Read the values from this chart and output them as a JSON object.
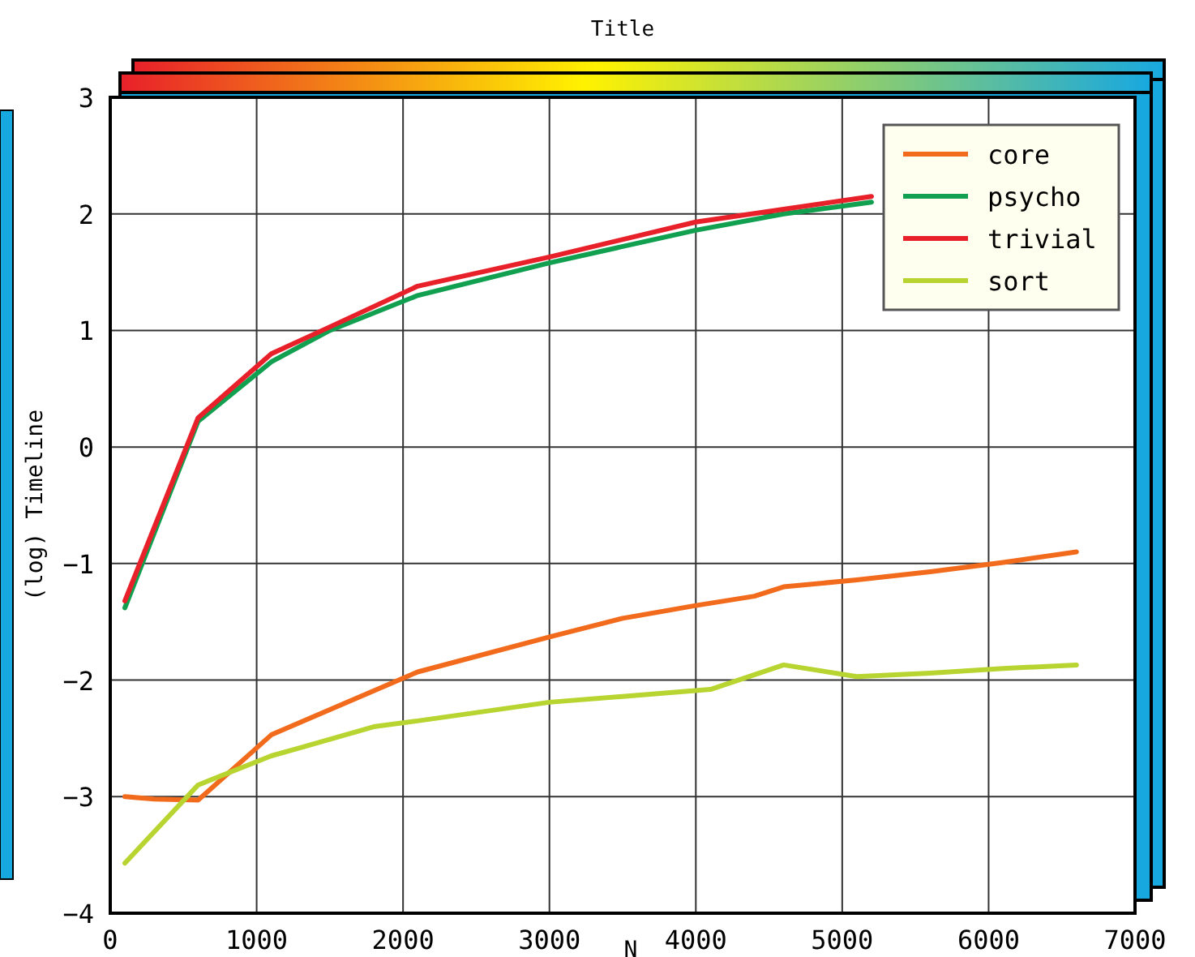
{
  "chart_data": {
    "type": "line",
    "title": "Title",
    "xlabel": "N",
    "ylabel": "(log) Timeline",
    "xlim": [
      0,
      7000
    ],
    "xticks": [
      0,
      1000,
      2000,
      3000,
      4000,
      5000,
      6000,
      7000
    ],
    "ylim": [
      -4,
      3
    ],
    "yticks": [
      -4,
      -3,
      -2,
      -1,
      0,
      1,
      2,
      3
    ],
    "grid": true,
    "legend": "top right",
    "series": [
      {
        "name": "core",
        "color": "#f26b1d",
        "x": [
          100,
          300,
          600,
          1100,
          1600,
          2100,
          3000,
          3500,
          4000,
          4400,
          4600,
          5100,
          5600,
          6100,
          6600
        ],
        "values": [
          -3.0,
          -3.02,
          -3.03,
          -2.47,
          -2.2,
          -1.93,
          -1.63,
          -1.47,
          -1.36,
          -1.28,
          -1.2,
          -1.14,
          -1.07,
          -0.99,
          -0.9
        ]
      },
      {
        "name": "psycho",
        "color": "#10a050",
        "x": [
          100,
          600,
          1100,
          1500,
          2100,
          3000,
          4000,
          4600,
          5200
        ],
        "values": [
          -1.38,
          0.22,
          0.73,
          1.0,
          1.3,
          1.58,
          1.86,
          2.0,
          2.1
        ]
      },
      {
        "name": "trivial",
        "color": "#e8202a",
        "x": [
          100,
          600,
          1100,
          1500,
          2100,
          3000,
          4000,
          4600,
          5200
        ],
        "values": [
          -1.32,
          0.25,
          0.8,
          1.03,
          1.38,
          1.63,
          1.93,
          2.04,
          2.15
        ]
      },
      {
        "name": "sort",
        "color": "#b8d430",
        "x": [
          100,
          600,
          1100,
          1300,
          1800,
          2100,
          3000,
          3500,
          4100,
          4600,
          5100,
          5600,
          6100,
          6600
        ],
        "values": [
          -3.57,
          -2.9,
          -2.65,
          -2.58,
          -2.4,
          -2.35,
          -2.19,
          -2.14,
          -2.08,
          -1.87,
          -1.97,
          -1.94,
          -1.9,
          -1.87
        ]
      }
    ]
  }
}
